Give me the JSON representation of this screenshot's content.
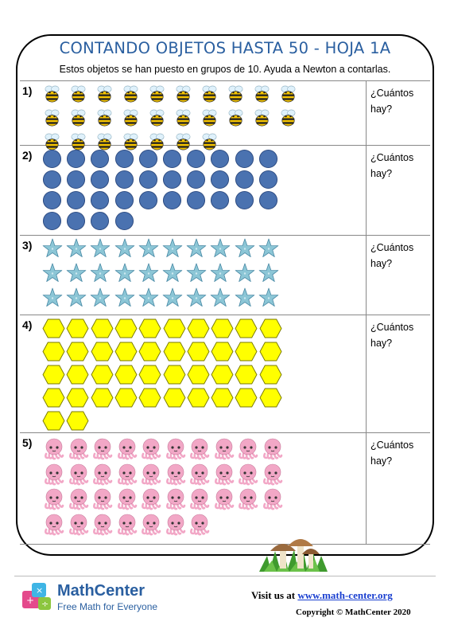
{
  "page": {
    "title": "CONTANDO OBJETOS HASTA 50 - HOJA 1A",
    "instructions": "Estos objetos se han puesto en grupos de 10. Ayuda a Newton a contarlas."
  },
  "rows": [
    {
      "number": "1)",
      "object": "bee-icon",
      "count": 27,
      "prompt_line1": "¿Cuántos",
      "prompt_line2": "hay?"
    },
    {
      "number": "2)",
      "object": "blue-circle-icon",
      "count": 34,
      "prompt_line1": "¿Cuántos",
      "prompt_line2": "hay?"
    },
    {
      "number": "3)",
      "object": "starfish-icon",
      "count": 30,
      "prompt_line1": "¿Cuántos",
      "prompt_line2": "hay?"
    },
    {
      "number": "4)",
      "object": "yellow-hexagon-icon",
      "count": 42,
      "prompt_line1": "¿Cuántos",
      "prompt_line2": "hay?"
    },
    {
      "number": "5)",
      "object": "octopus-icon",
      "count": 37,
      "prompt_line1": "¿Cuántos",
      "prompt_line2": "hay?"
    }
  ],
  "footer": {
    "brand": "MathCenter",
    "tagline": "Free Math for Everyone",
    "visit_prefix": "Visit us at",
    "url": "www.math-center.org",
    "copyright": "Copyright © MathCenter 2020"
  },
  "colors": {
    "title": "#2a5fa0",
    "circle": "#4a72b0",
    "hexagon": "#ffff00",
    "starfish": "#8cc6d6",
    "octopus": "#f2a7c6",
    "bee": "#f5c400"
  }
}
